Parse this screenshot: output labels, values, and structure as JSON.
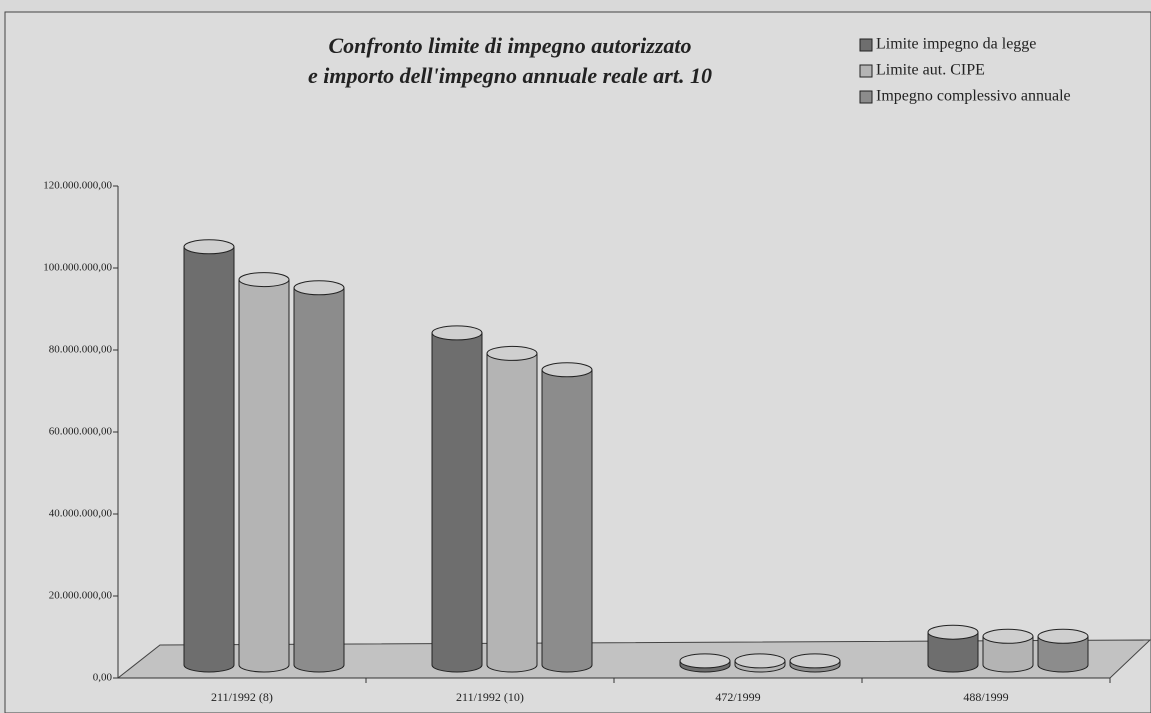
{
  "chart_data": {
    "type": "bar3d-cylinder",
    "title": [
      "Confronto limite di impegno autorizzato",
      "e importo dell'impegno annuale reale art. 10"
    ],
    "categories": [
      "211/1992 (8)",
      "211/1992 (10)",
      "472/1999",
      "488/1999"
    ],
    "series": [
      {
        "name": "Limite impegno da legge",
        "color": "#6e6e6e",
        "values": [
          102000000,
          81000000,
          1000000,
          8000000
        ]
      },
      {
        "name": "Limite aut. CIPE",
        "color": "#b4b4b4",
        "values": [
          94000000,
          76000000,
          1000000,
          7000000
        ]
      },
      {
        "name": "Impegno complessivo annuale",
        "color": "#8c8c8c",
        "values": [
          92000000,
          72000000,
          1000000,
          7000000
        ]
      }
    ],
    "ylim": [
      0,
      120000000
    ],
    "yticks": [
      {
        "value": 0,
        "label": "0,00"
      },
      {
        "value": 20000000,
        "label": "20.000.000,00"
      },
      {
        "value": 40000000,
        "label": "40.000.000,00"
      },
      {
        "value": 60000000,
        "label": "60.000.000,00"
      },
      {
        "value": 80000000,
        "label": "80.000.000,00"
      },
      {
        "value": 100000000,
        "label": "100.000.000,00"
      },
      {
        "value": 120000000,
        "label": "120.000.000,00"
      }
    ],
    "grid": false,
    "legend": "top-right"
  }
}
